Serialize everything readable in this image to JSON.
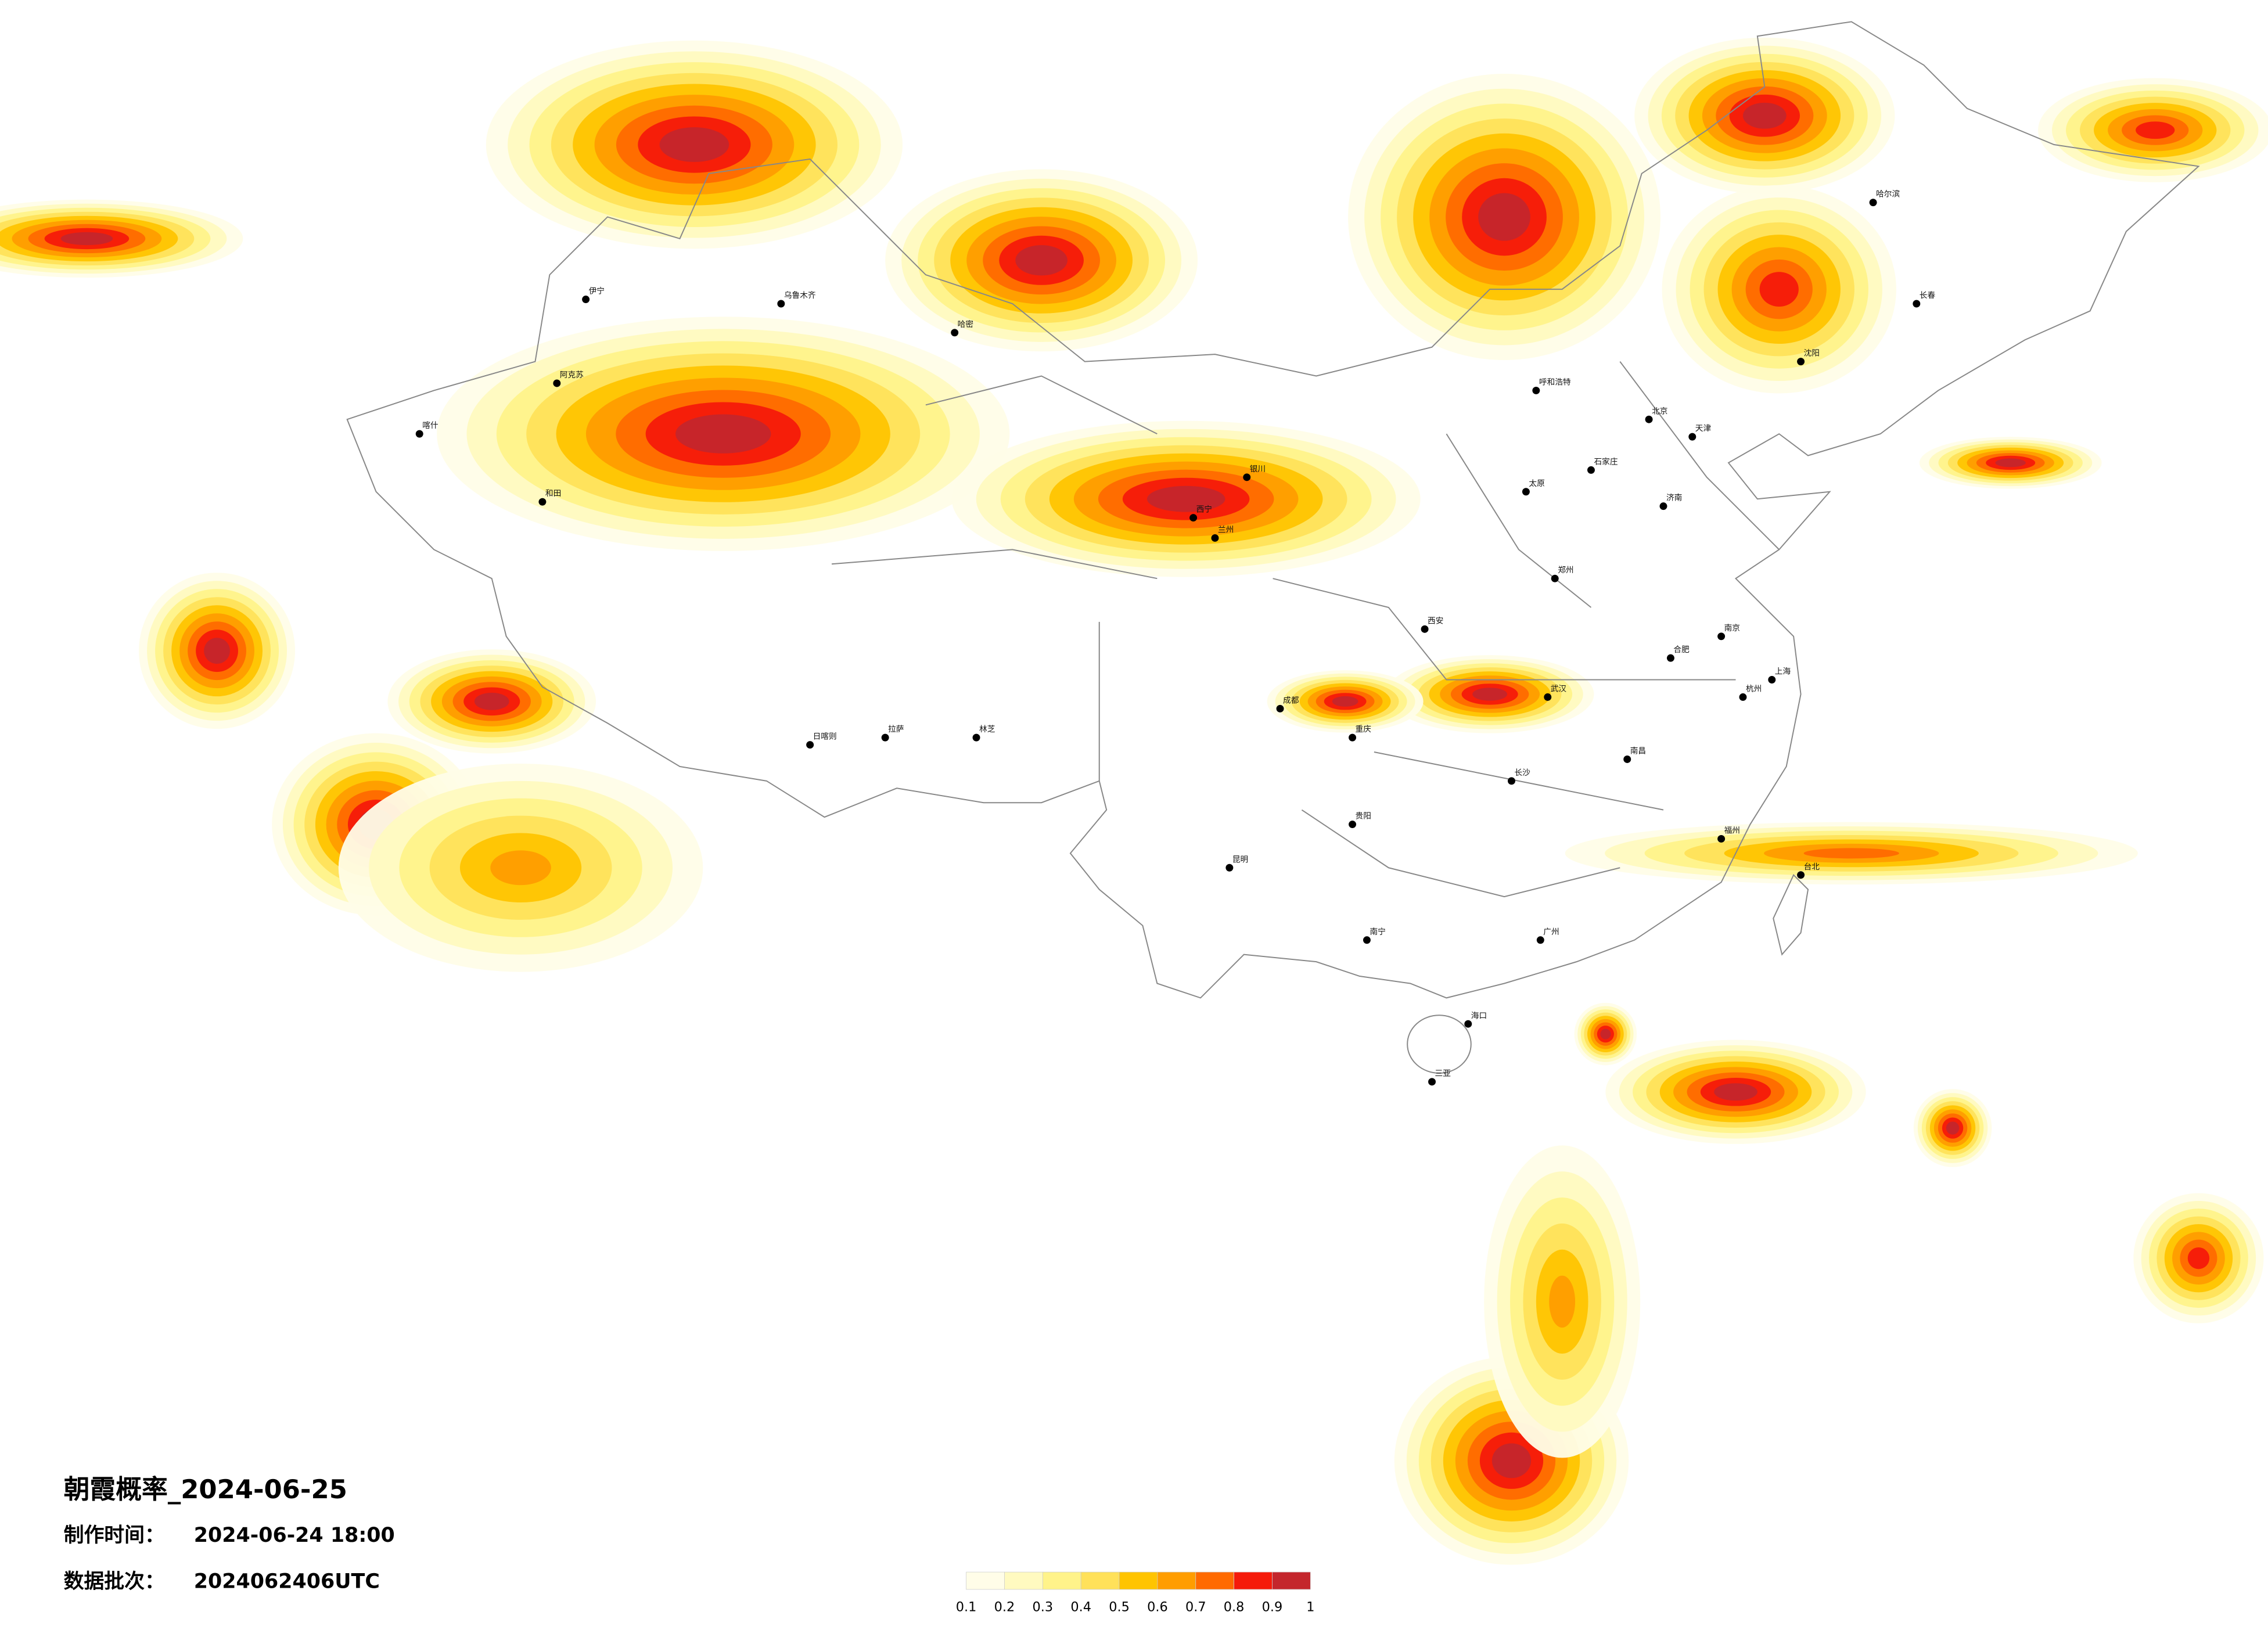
{
  "title": "朝霞概率_2024-06-25",
  "production": {
    "label": "制作时间：",
    "value": "2024-06-24 18:00"
  },
  "batch": {
    "label": "数据批次：",
    "value": "2024062406UTC"
  },
  "legend": {
    "ticks": [
      0.1,
      0.2,
      0.3,
      0.4,
      0.5,
      0.6,
      0.7,
      0.8,
      0.9,
      1
    ],
    "colors": [
      "#fffde8",
      "#fffac0",
      "#fff38a",
      "#ffe15a",
      "#ffc400",
      "#ff9d00",
      "#ff6a00",
      "#f51a0a",
      "#c4262c"
    ]
  },
  "cities": [
    "北京",
    "天津",
    "石家庄",
    "太原",
    "呼和浩特",
    "济南",
    "郑州",
    "西安",
    "兰州",
    "西宁",
    "银川",
    "成都",
    "重庆",
    "贵阳",
    "昆明",
    "南宁",
    "广州",
    "海口",
    "三亚",
    "长沙",
    "武汉",
    "南昌",
    "合肥",
    "南京",
    "上海",
    "杭州",
    "福州",
    "台北",
    "沈阳",
    "长春",
    "哈尔滨",
    "乌鲁木齐",
    "哈密",
    "伊宁",
    "阿克苏",
    "喀什",
    "和田",
    "拉萨",
    "日喀则",
    "林芝"
  ]
}
